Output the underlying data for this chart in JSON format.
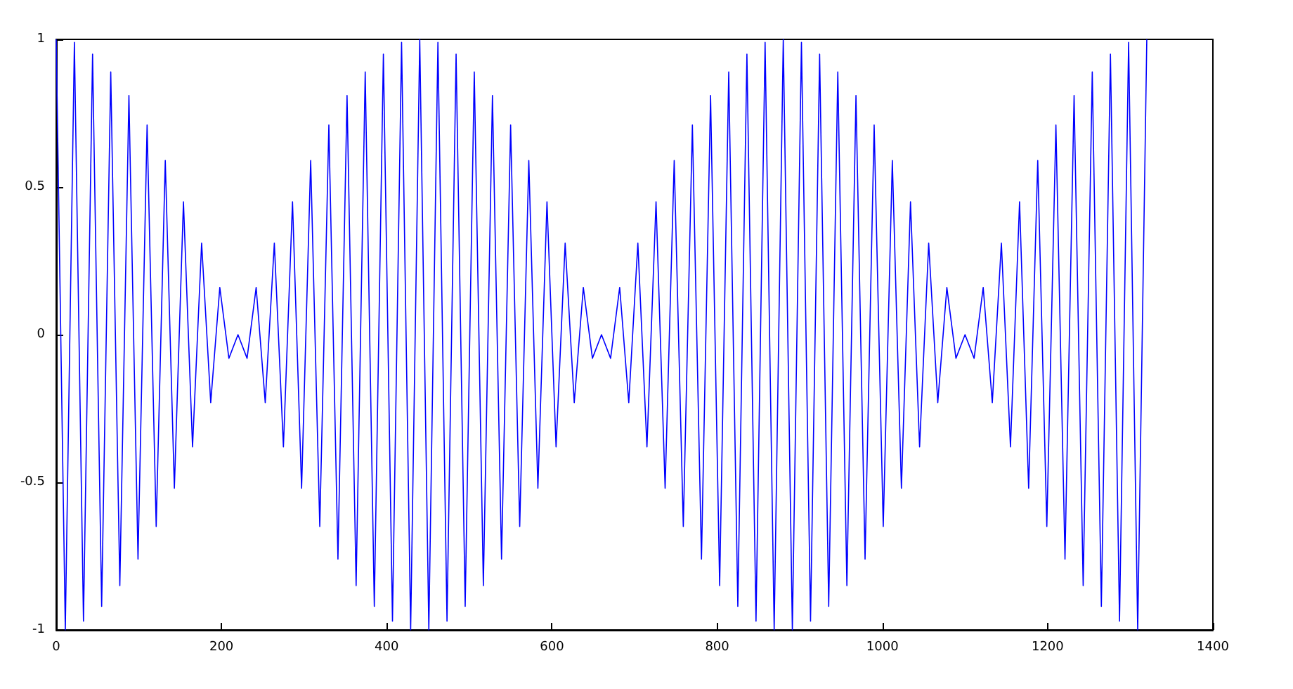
{
  "chart_data": {
    "type": "line",
    "x": [
      0,
      11,
      22,
      33,
      44,
      55,
      66,
      77,
      88,
      99,
      110,
      121,
      132,
      143,
      154,
      165,
      176,
      187,
      198,
      209,
      220,
      231,
      242,
      253,
      264,
      275,
      286,
      297,
      308,
      319,
      330,
      341,
      352,
      363,
      374,
      385,
      396,
      407,
      418,
      429,
      440,
      451,
      462,
      473,
      484,
      495,
      506,
      517,
      528,
      539,
      550,
      561,
      572,
      583,
      594,
      605,
      616,
      627,
      638,
      649,
      660,
      671,
      682,
      693,
      704,
      715,
      726,
      737,
      748,
      759,
      770,
      781,
      792,
      803,
      814,
      825,
      836,
      847,
      858,
      869,
      880,
      891,
      902,
      913,
      924,
      935,
      946,
      957,
      968,
      979,
      990,
      1001,
      1012,
      1023,
      1034,
      1045,
      1056,
      1067,
      1078,
      1089,
      1100,
      1111,
      1122,
      1133,
      1144,
      1155,
      1166,
      1177,
      1188,
      1199,
      1210,
      1221,
      1232,
      1243,
      1254,
      1265,
      1276,
      1287,
      1298,
      1309,
      1320
    ],
    "series": [
      {
        "color": "#0000ff",
        "values": [
          1,
          -1,
          0.99,
          -0.97,
          0.95,
          -0.92,
          0.89,
          -0.85,
          0.81,
          -0.76,
          0.71,
          -0.65,
          0.59,
          -0.52,
          0.45,
          -0.38,
          0.31,
          -0.23,
          0.16,
          -0.08,
          0,
          -0.08,
          0.16,
          -0.23,
          0.31,
          -0.38,
          0.45,
          -0.52,
          0.59,
          -0.65,
          0.71,
          -0.76,
          0.81,
          -0.85,
          0.89,
          -0.92,
          0.95,
          -0.97,
          0.99,
          -1,
          1,
          -1,
          0.99,
          -0.97,
          0.95,
          -0.92,
          0.89,
          -0.85,
          0.81,
          -0.76,
          0.71,
          -0.65,
          0.59,
          -0.52,
          0.45,
          -0.38,
          0.31,
          -0.23,
          0.16,
          -0.08,
          0,
          -0.08,
          0.16,
          -0.23,
          0.31,
          -0.38,
          0.45,
          -0.52,
          0.59,
          -0.65,
          0.71,
          -0.76,
          0.81,
          -0.85,
          0.89,
          -0.92,
          0.95,
          -0.97,
          0.99,
          -1,
          1,
          -1,
          0.99,
          -0.97,
          0.95,
          -0.92,
          0.89,
          -0.85,
          0.81,
          -0.76,
          0.71,
          -0.65,
          0.59,
          -0.52,
          0.45,
          -0.38,
          0.31,
          -0.23,
          0.16,
          -0.08,
          0,
          -0.08,
          0.16,
          -0.23,
          0.31,
          -0.38,
          0.45,
          -0.52,
          0.59,
          -0.65,
          0.71,
          -0.76,
          0.81,
          -0.85,
          0.89,
          -0.92,
          0.95,
          -0.97,
          0.99,
          -1,
          1
        ]
      }
    ],
    "xlim": [
      0,
      1400
    ],
    "xticks": [
      0,
      200,
      400,
      600,
      800,
      1000,
      1200,
      1400
    ],
    "ylim": [
      -1,
      1
    ],
    "yticks": [
      -1,
      -0.5,
      0,
      0.5,
      1
    ],
    "grid": false,
    "marker": "none",
    "line_style": "solid"
  }
}
